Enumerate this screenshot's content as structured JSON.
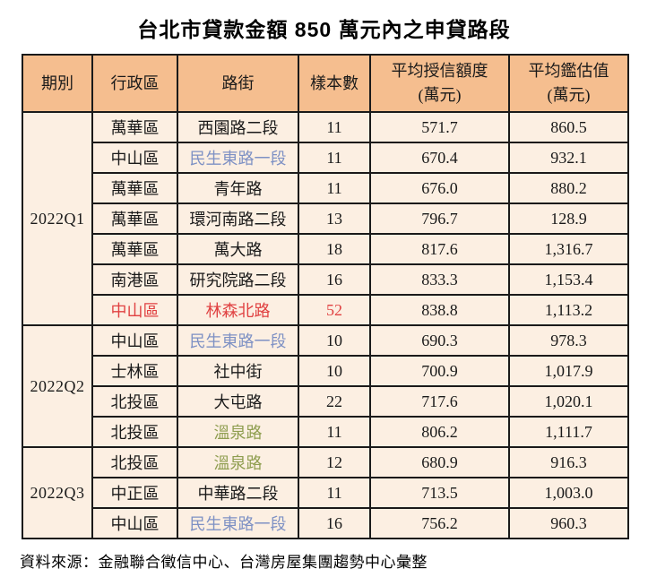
{
  "title": "台北市貸款金額 850 萬元內之申貸路段",
  "source": "資料來源：金融聯合徵信中心、台灣房屋集團趨勢中心彙整",
  "colors": {
    "header_bg": "#f5be8f",
    "body_bg": "#fcefe2",
    "border": "#1a1a1a",
    "highlight_red": "#e04141",
    "road_blue": "#7e91c4",
    "road_green": "#8f9e50"
  },
  "table": {
    "headers": {
      "period": "期別",
      "district": "行政區",
      "road": "路街",
      "samples": "樣本數",
      "avg_credit_line1": "平均授信額度",
      "avg_credit_line2": "(萬元)",
      "avg_appraisal_line1": "平均鑑估值",
      "avg_appraisal_line2": "(萬元)"
    },
    "groups": [
      {
        "period": "2022Q1",
        "rows": [
          {
            "district": "萬華區",
            "road": "西園路二段",
            "samples": "11",
            "avg_credit": "571.7",
            "avg_appraisal": "860.5",
            "road_color": "default",
            "highlight": "none"
          },
          {
            "district": "中山區",
            "road": "民生東路一段",
            "samples": "11",
            "avg_credit": "670.4",
            "avg_appraisal": "932.1",
            "road_color": "blue",
            "highlight": "none"
          },
          {
            "district": "萬華區",
            "road": "青年路",
            "samples": "11",
            "avg_credit": "676.0",
            "avg_appraisal": "880.2",
            "road_color": "default",
            "highlight": "none"
          },
          {
            "district": "萬華區",
            "road": "環河南路二段",
            "samples": "13",
            "avg_credit": "796.7",
            "avg_appraisal": "128.9",
            "road_color": "default",
            "highlight": "none"
          },
          {
            "district": "萬華區",
            "road": "萬大路",
            "samples": "18",
            "avg_credit": "817.6",
            "avg_appraisal": "1,316.7",
            "road_color": "default",
            "highlight": "none"
          },
          {
            "district": "南港區",
            "road": "研究院路二段",
            "samples": "16",
            "avg_credit": "833.3",
            "avg_appraisal": "1,153.4",
            "road_color": "default",
            "highlight": "none"
          },
          {
            "district": "中山區",
            "road": "林森北路",
            "samples": "52",
            "avg_credit": "838.8",
            "avg_appraisal": "1,113.2",
            "road_color": "red",
            "highlight": "red"
          }
        ]
      },
      {
        "period": "2022Q2",
        "rows": [
          {
            "district": "中山區",
            "road": "民生東路一段",
            "samples": "10",
            "avg_credit": "690.3",
            "avg_appraisal": "978.3",
            "road_color": "blue",
            "highlight": "none"
          },
          {
            "district": "士林區",
            "road": "社中街",
            "samples": "10",
            "avg_credit": "700.9",
            "avg_appraisal": "1,017.9",
            "road_color": "default",
            "highlight": "none"
          },
          {
            "district": "北投區",
            "road": "大屯路",
            "samples": "22",
            "avg_credit": "717.6",
            "avg_appraisal": "1,020.1",
            "road_color": "default",
            "highlight": "none"
          },
          {
            "district": "北投區",
            "road": "溫泉路",
            "samples": "11",
            "avg_credit": "806.2",
            "avg_appraisal": "1,111.7",
            "road_color": "green",
            "highlight": "none"
          }
        ]
      },
      {
        "period": "2022Q3",
        "rows": [
          {
            "district": "北投區",
            "road": "溫泉路",
            "samples": "12",
            "avg_credit": "680.9",
            "avg_appraisal": "916.3",
            "road_color": "green",
            "highlight": "none"
          },
          {
            "district": "中正區",
            "road": "中華路二段",
            "samples": "11",
            "avg_credit": "713.5",
            "avg_appraisal": "1,003.0",
            "road_color": "default",
            "highlight": "none"
          },
          {
            "district": "中山區",
            "road": "民生東路一段",
            "samples": "16",
            "avg_credit": "756.2",
            "avg_appraisal": "960.3",
            "road_color": "blue",
            "highlight": "none"
          }
        ]
      }
    ]
  }
}
